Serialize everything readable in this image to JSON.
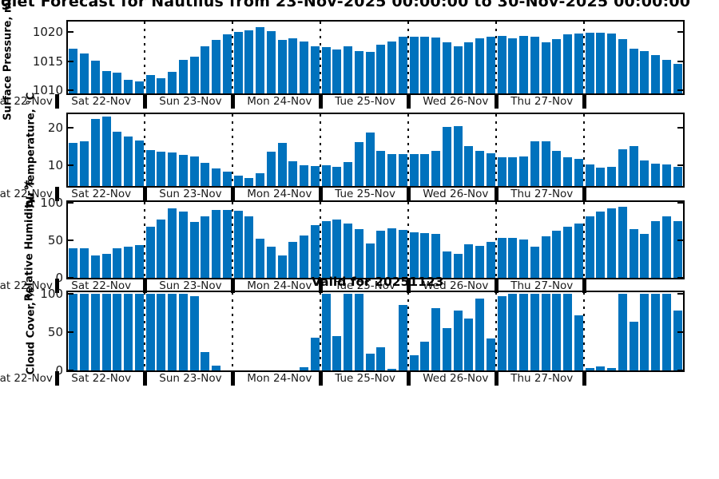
{
  "title": "glet Forecast for Nautilus from 23-Nov-2025 00:00:00 to 30-Nov-2025 00:00:00",
  "valid_for_label": "Valid for 20251123",
  "colors": {
    "bar": "#0072BD",
    "axis": "#000000",
    "tick_text": "#1a1a1a"
  },
  "chart_data": {
    "type": "bar",
    "layout": "4 stacked bar subplots sharing a 7-day, 3-hourly x axis; dotted vertical lines at day boundaries; legend none; grid off",
    "x": {
      "clipped_first_label": "Sat 22-Nov",
      "day_labels": [
        "Sat 22-Nov",
        "Sun 23-Nov",
        "Mon 24-Nov",
        "Tue 25-Nov",
        "Wed 26-Nov",
        "Thu 27-Nov"
      ],
      "bars_per_day": [
        7,
        8,
        8,
        8,
        8,
        8,
        9
      ]
    },
    "subplots": [
      {
        "name": "surface-pressure",
        "ylabel": "Surface Pressure, mb",
        "yticks": [
          1010,
          1015,
          1020
        ],
        "ylim": [
          1009.5,
          1021.8
        ],
        "values": [
          1017.1,
          1016.3,
          1015.1,
          1013.3,
          1013.1,
          1011.8,
          1011.5,
          1012.6,
          1012.1,
          1013.2,
          1015.2,
          1015.8,
          1017.6,
          1018.7,
          1019.6,
          1020.0,
          1020.3,
          1020.9,
          1020.1,
          1018.6,
          1019.0,
          1018.4,
          1017.6,
          1017.4,
          1017.0,
          1017.5,
          1016.8,
          1016.6,
          1017.8,
          1018.4,
          1019.2,
          1019.2,
          1019.2,
          1019.1,
          1018.3,
          1017.5,
          1018.2,
          1018.9,
          1019.2,
          1019.3,
          1018.9,
          1019.4,
          1019.2,
          1018.3,
          1018.8,
          1019.6,
          1019.8,
          1019.9,
          1019.9,
          1019.8,
          1018.8,
          1017.1,
          1016.7,
          1016.1,
          1015.2,
          1014.5
        ]
      },
      {
        "name": "air-temperature",
        "ylabel": "Air Temperature, °C",
        "yticks": [
          10,
          20
        ],
        "ylim": [
          4.5,
          23.5
        ],
        "values": [
          16.0,
          16.4,
          22.3,
          22.8,
          18.8,
          17.6,
          16.5,
          14.1,
          13.5,
          13.4,
          12.7,
          12.3,
          10.6,
          9.1,
          8.3,
          7.2,
          6.6,
          7.8,
          13.6,
          15.9,
          11.0,
          9.9,
          9.8,
          10.0,
          9.6,
          10.8,
          16.2,
          18.6,
          13.8,
          13.0,
          13.0,
          13.0,
          13.0,
          13.8,
          20.2,
          20.4,
          15.0,
          13.8,
          13.2,
          12.2,
          12.0,
          12.4,
          16.3,
          16.3,
          13.7,
          12.0,
          11.6,
          10.2,
          9.3,
          9.5,
          14.3,
          15.0,
          11.2,
          10.5,
          10.2,
          9.5
        ]
      },
      {
        "name": "relative-humidity",
        "ylabel": "Relative Humidity, %",
        "yticks": [
          0,
          50,
          100
        ],
        "ylim": [
          0,
          101
        ],
        "values": [
          39,
          39,
          30,
          32,
          39,
          41,
          44,
          68,
          78,
          93,
          88,
          74,
          82,
          90,
          90,
          89,
          82,
          52,
          41,
          30,
          48,
          56,
          70,
          75,
          78,
          72,
          65,
          46,
          63,
          66,
          64,
          61,
          60,
          59,
          35,
          32,
          45,
          43,
          48,
          53,
          53,
          51,
          41,
          55,
          63,
          68,
          72,
          82,
          88,
          92,
          95,
          65,
          59,
          75,
          82,
          76
        ]
      },
      {
        "name": "cloud-cover",
        "ylabel": "Cloud Cover, %",
        "yticks": [
          0,
          50,
          100
        ],
        "ylim": [
          0,
          102
        ],
        "values": [
          100,
          100,
          100,
          100,
          100,
          100,
          100,
          100,
          100,
          100,
          100,
          97,
          24,
          6,
          0,
          0,
          0,
          0,
          0,
          0,
          0,
          4,
          43,
          100,
          45,
          100,
          100,
          22,
          30,
          2,
          85,
          20,
          37,
          81,
          55,
          78,
          68,
          94,
          42,
          97,
          100,
          100,
          100,
          100,
          100,
          100,
          72,
          3,
          5,
          3,
          100,
          63,
          100,
          100,
          100,
          78
        ]
      }
    ]
  }
}
